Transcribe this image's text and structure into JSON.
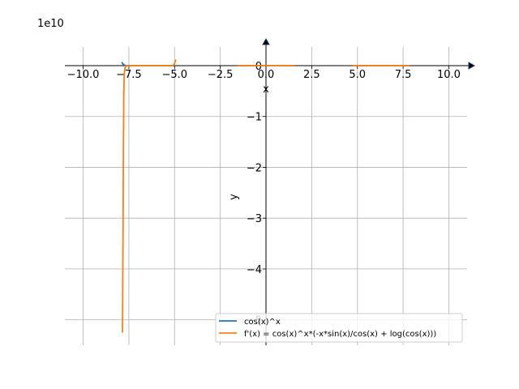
{
  "chart_data": {
    "type": "line",
    "xlabel": "x",
    "ylabel": "y",
    "y_scale_label": "1e10",
    "xlim": [
      -11.0,
      11.0
    ],
    "ylim": [
      -5.5,
      0.5
    ],
    "x_ticks": [
      -10.0,
      -7.5,
      -5.0,
      -2.5,
      0.0,
      2.5,
      5.0,
      7.5,
      10.0
    ],
    "x_tick_labels": [
      "−10.0",
      "−7.5",
      "−5.0",
      "−2.5",
      "0.0",
      "2.5",
      "5.0",
      "7.5",
      "10.0"
    ],
    "y_ticks": [
      0,
      -1,
      -2,
      -3,
      -4,
      -5
    ],
    "y_tick_labels": [
      "0",
      "−1",
      "−2",
      "−3",
      "−4",
      "−5"
    ],
    "grid": true,
    "legend_position": "bottom-right",
    "series": [
      {
        "name": "cos(x)^x",
        "color": "#1f77b4",
        "segments": [
          {
            "x": [
              -7.88,
              -7.85,
              -7.78,
              -7.7,
              -7.5,
              -7.0,
              -6.5,
              -6.0,
              -5.5,
              -5.0
            ],
            "y": [
              0.07,
              0.04,
              0.02,
              0.0,
              0.0,
              0.0,
              0.0,
              0.0,
              0.0,
              0.0
            ]
          },
          {
            "x": [
              -1.57,
              -1.0,
              0.0,
              1.0,
              1.57
            ],
            "y": [
              0.0,
              0.0,
              0.0,
              0.0,
              0.0
            ]
          },
          {
            "x": [
              4.71,
              5.5,
              6.28,
              7.0,
              7.85
            ],
            "y": [
              0.0,
              0.0,
              0.0,
              0.0,
              0.0
            ]
          }
        ]
      },
      {
        "name": "f'(x) = cos(x)^x*(-x*sin(x)/cos(x) + log(cos(x)))",
        "color": "#ff7f0e",
        "segments": [
          {
            "x": [
              -7.85,
              -7.82,
              -7.8,
              -7.78,
              -7.75,
              -7.7,
              -7.6,
              -7.4,
              -7.0,
              -6.5,
              -6.0,
              -5.5,
              -5.1,
              -5.0,
              -4.93
            ],
            "y": [
              -5.25,
              -3.5,
              -1.8,
              -0.6,
              -0.15,
              -0.03,
              0.0,
              0.0,
              0.0,
              0.0,
              0.0,
              0.0,
              0.0,
              0.04,
              0.12
            ]
          },
          {
            "x": [
              -1.57,
              -1.0,
              0.0,
              1.0,
              1.57
            ],
            "y": [
              0.0,
              0.0,
              0.0,
              0.0,
              0.0
            ]
          },
          {
            "x": [
              4.71,
              5.5,
              6.28,
              7.0,
              7.85
            ],
            "y": [
              0.0,
              0.0,
              0.0,
              0.0,
              0.0
            ]
          }
        ]
      }
    ]
  }
}
